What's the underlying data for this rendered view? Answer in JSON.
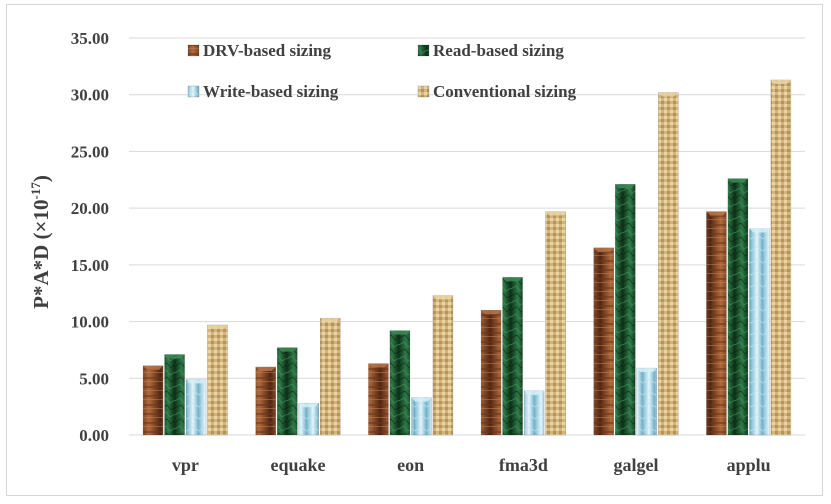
{
  "chart_data": {
    "type": "bar",
    "title": "",
    "xlabel": "",
    "ylabel": "P*A*D (×10",
    "ylabel_exponent": "-17",
    "ylabel_close": ")",
    "ylim": [
      0,
      35
    ],
    "yticks": [
      "0.00",
      "5.00",
      "10.00",
      "15.00",
      "20.00",
      "25.00",
      "30.00",
      "35.00"
    ],
    "grid": true,
    "legend_position": "top-left",
    "categories": [
      "vpr",
      "equake",
      "eon",
      "fma3d",
      "galgel",
      "applu"
    ],
    "series": [
      {
        "name": "DRV-based sizing",
        "values": [
          6.1,
          6.0,
          6.3,
          11.0,
          16.5,
          19.7
        ]
      },
      {
        "name": "Read-based sizing",
        "values": [
          7.1,
          7.7,
          9.2,
          13.9,
          22.1,
          22.6
        ]
      },
      {
        "name": "Write-based sizing",
        "values": [
          4.9,
          2.8,
          3.3,
          3.9,
          5.9,
          18.2
        ]
      },
      {
        "name": "Conventional sizing",
        "values": [
          9.7,
          10.3,
          12.3,
          19.7,
          30.2,
          31.3
        ]
      }
    ],
    "colors": {
      "drv": "#8b4a2b",
      "read": "#1f5a34",
      "write": "#9fd4e6",
      "conventional": "#cfb27a",
      "grid": "#d9d9d9",
      "text": "#404040"
    }
  }
}
